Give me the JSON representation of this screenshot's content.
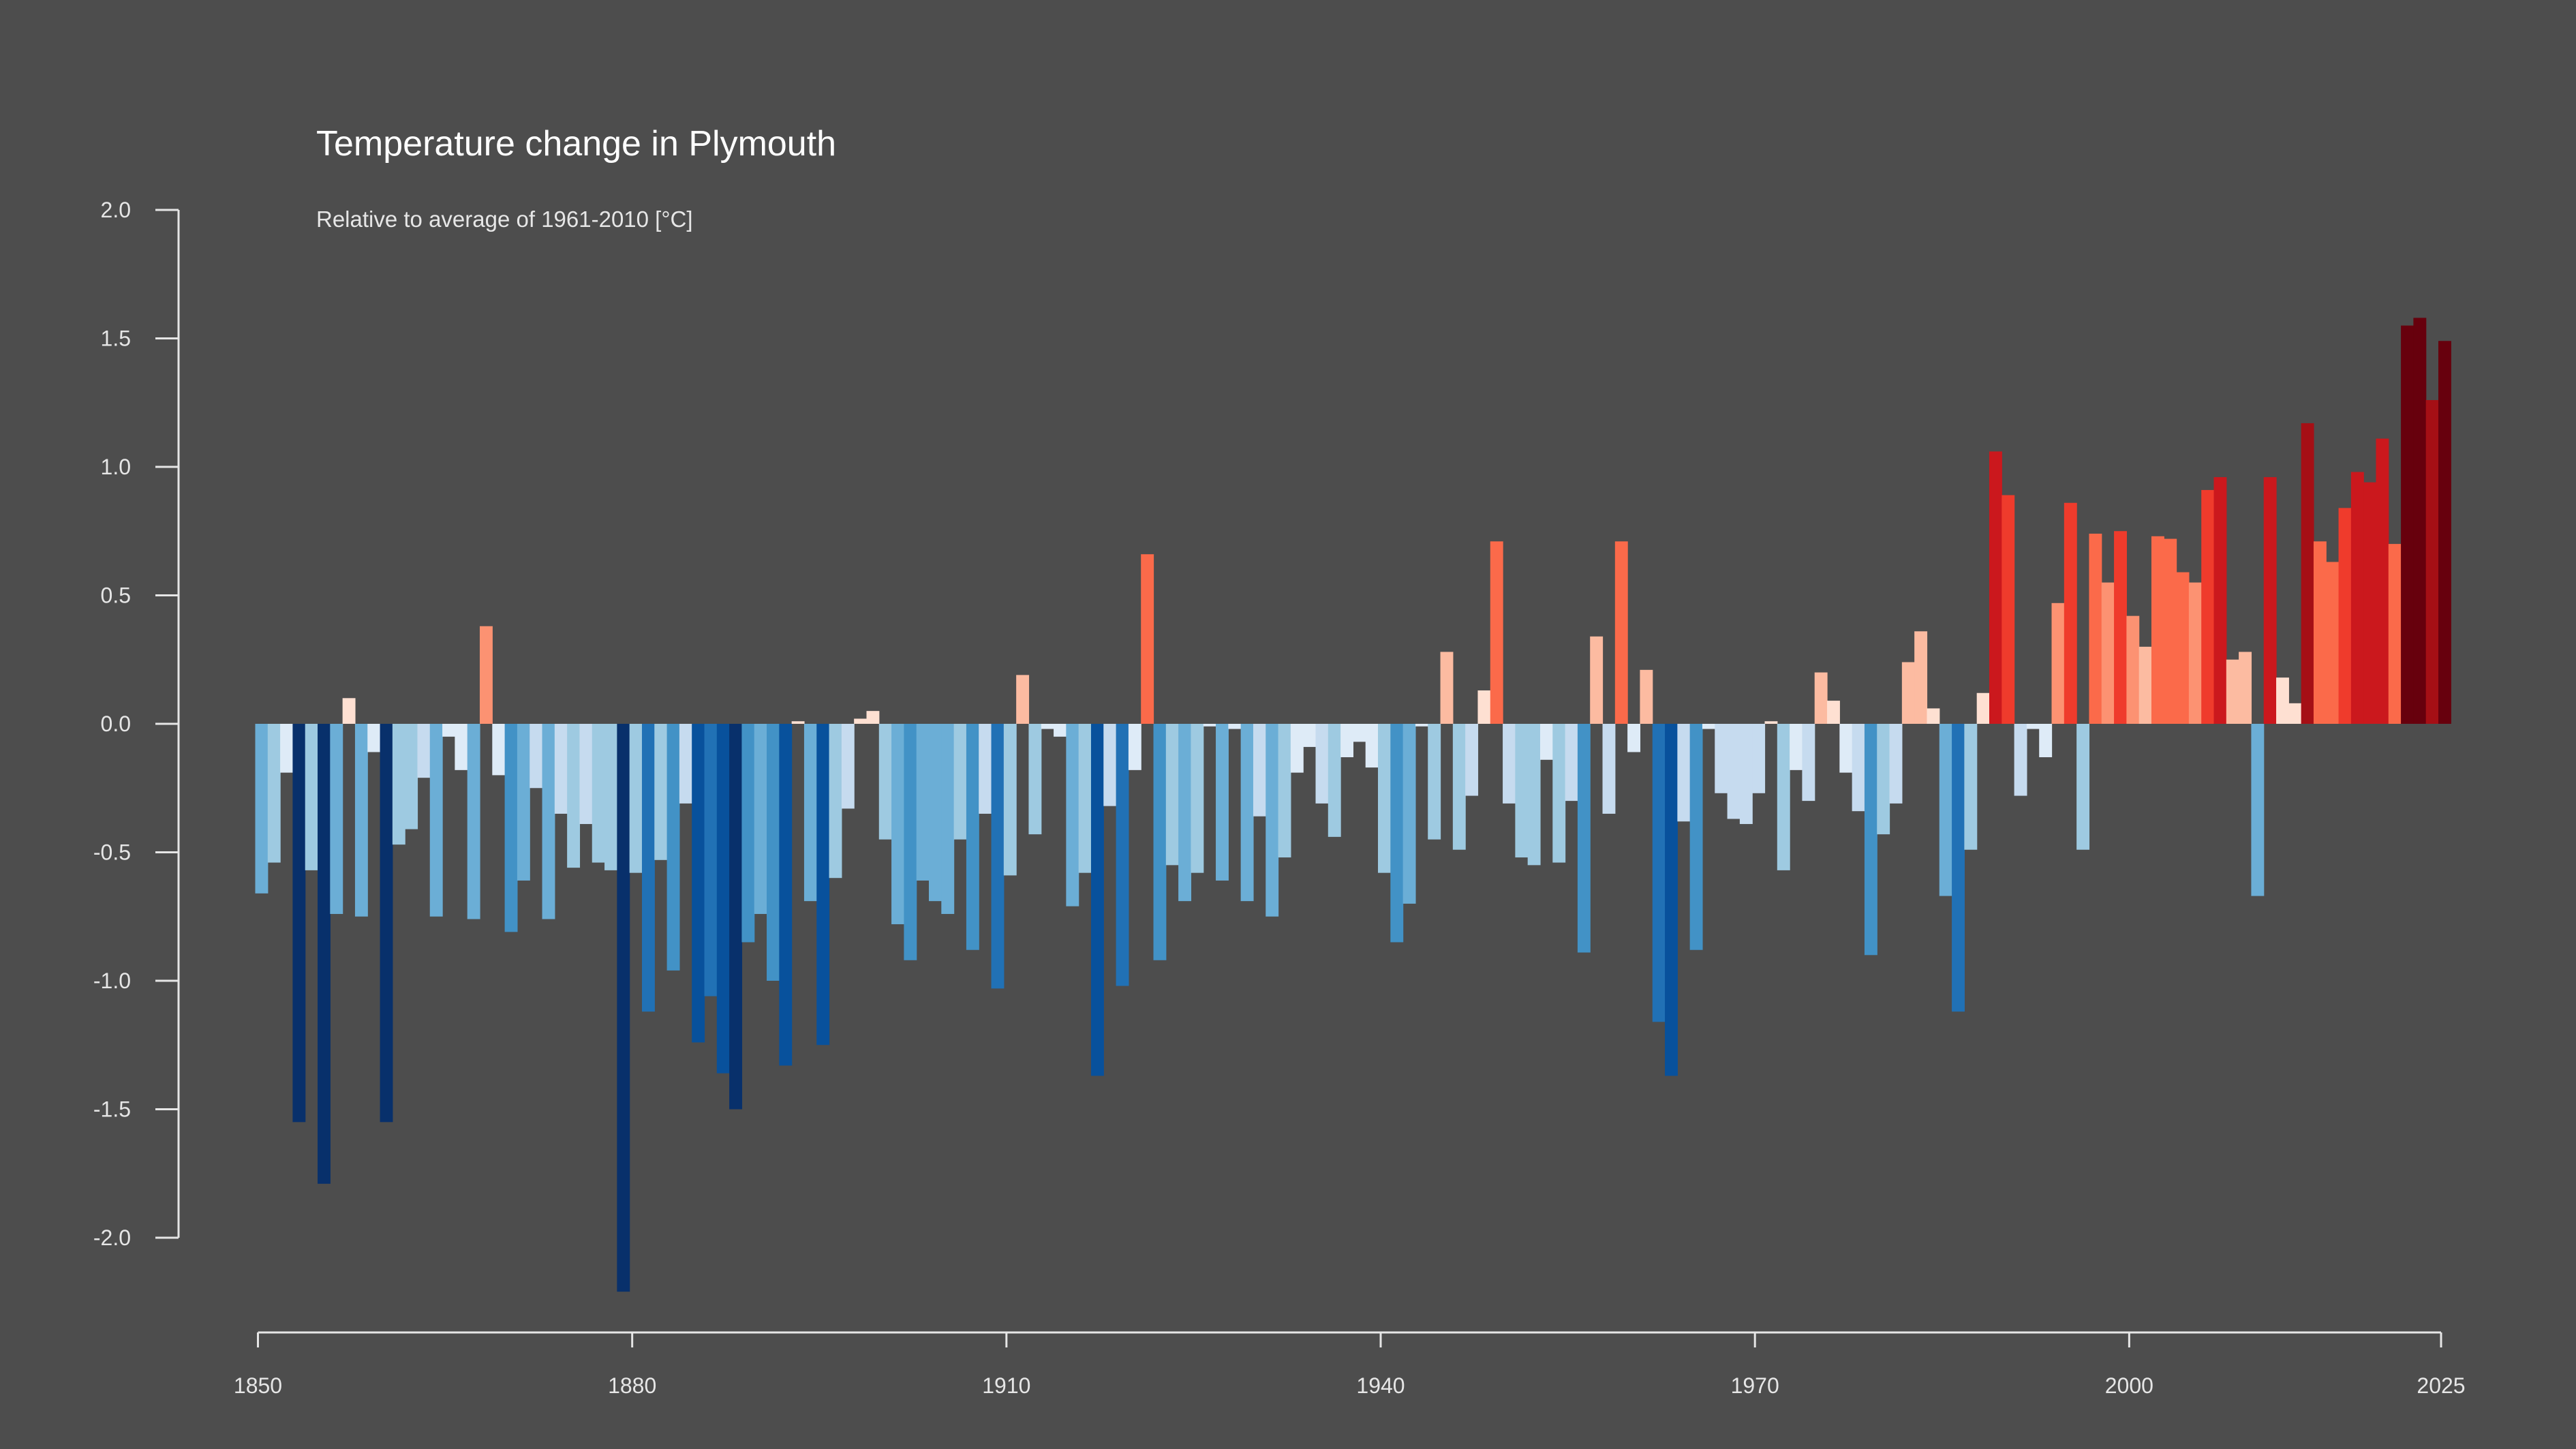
{
  "chart_data": {
    "type": "bar",
    "title": "Temperature change in Plymouth",
    "subtitle": "Relative to average of 1961-2010  [°C]",
    "xlabel": "",
    "ylabel": "",
    "x_start": 1850,
    "x_end": 2024,
    "ylim": [
      -2.0,
      2.0
    ],
    "y_ticks": [
      2.0,
      1.5,
      1.0,
      0.5,
      0.0,
      -0.5,
      -1.0,
      -1.5,
      -2.0
    ],
    "y_tick_labels": [
      "2.0",
      "1.5",
      "1.0",
      "0.5",
      "0.0",
      "-0.5",
      "-1.0",
      "-1.5",
      "-2.0"
    ],
    "x_ticks": [
      1850,
      1880,
      1910,
      1940,
      1970,
      2000,
      2025
    ],
    "x_tick_labels": [
      "1850",
      "1880",
      "1910",
      "1940",
      "1970",
      "2000",
      "2025"
    ],
    "grid": false,
    "colors": {
      "background": "#4d4d4d",
      "text": "#e6e6e6",
      "title": "#ffffff",
      "cold_palette": [
        "#08306b",
        "#08519c",
        "#2171b5",
        "#4292c6",
        "#6baed6",
        "#9ecae1",
        "#c6dbef",
        "#deebf7"
      ],
      "warm_palette": [
        "#fee0d2",
        "#fcbba1",
        "#fc9272",
        "#fb6a4a",
        "#ef3b2c",
        "#cb181d",
        "#a50f15",
        "#67000d"
      ]
    },
    "series": [
      {
        "values": [
          -0.66,
          -0.54,
          -0.19,
          -1.55,
          -0.57,
          -1.79,
          -0.74,
          0.1,
          -0.75,
          -0.11,
          -1.55,
          -0.47,
          -0.41,
          -0.21,
          -0.75,
          -0.05,
          -0.18,
          -0.76,
          0.38,
          -0.2,
          -0.81,
          -0.61,
          -0.25,
          -0.76,
          -0.35,
          -0.56,
          -0.39,
          -0.54,
          -0.57,
          -2.21,
          -0.58,
          -1.12,
          -0.53,
          -0.96,
          -0.31,
          -1.24,
          -1.06,
          -1.36,
          -1.5,
          -0.85,
          -0.74,
          -1.0,
          -1.33,
          0.01,
          -0.69,
          -1.25,
          -0.6,
          -0.33,
          0.02,
          0.05,
          -0.45,
          -0.78,
          -0.92,
          -0.61,
          -0.69,
          -0.74,
          -0.45,
          -0.88,
          -0.35,
          -1.03,
          -0.59,
          0.19,
          -0.43,
          -0.02,
          -0.05,
          -0.71,
          -0.58,
          -1.37,
          -0.32,
          -1.02,
          -0.18,
          0.66,
          -0.92,
          -0.55,
          -0.69,
          -0.58,
          -0.01,
          -0.61,
          -0.02,
          -0.69,
          -0.36,
          -0.75,
          -0.52,
          -0.19,
          -0.09,
          -0.31,
          -0.44,
          -0.13,
          -0.07,
          -0.17,
          -0.58,
          -0.85,
          -0.7,
          -0.01,
          -0.45,
          0.28,
          -0.49,
          -0.28,
          0.13,
          0.71,
          -0.31,
          -0.52,
          -0.55,
          -0.14,
          -0.54,
          -0.3,
          -0.89,
          0.34,
          -0.35,
          0.71,
          -0.11,
          0.21,
          -1.16,
          -1.37,
          -0.38,
          -0.88,
          -0.02,
          -0.27,
          -0.37,
          -0.39,
          -0.27,
          0.01,
          -0.57,
          -0.18,
          -0.3,
          0.2,
          0.09,
          -0.19,
          -0.34,
          -0.9,
          -0.43,
          -0.31,
          0.24,
          0.36,
          0.06,
          -0.67,
          -1.12,
          -0.49,
          0.12,
          1.06,
          0.89,
          -0.28,
          -0.02,
          -0.13,
          0.47,
          0.86,
          -0.49,
          0.74,
          0.55,
          0.75,
          0.42,
          0.3,
          0.73,
          0.72,
          0.59,
          0.55,
          0.91,
          0.96,
          0.25,
          0.28,
          -0.67,
          0.96,
          0.18,
          0.08,
          1.17,
          0.71,
          0.63,
          0.84,
          0.98,
          0.94,
          1.11,
          0.7,
          1.55,
          1.58,
          1.26,
          1.49
        ]
      }
    ]
  }
}
